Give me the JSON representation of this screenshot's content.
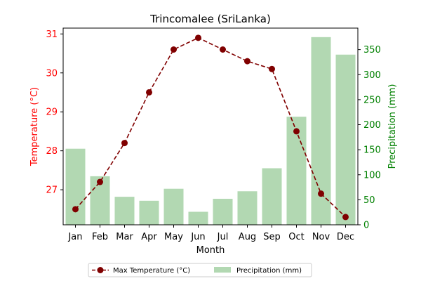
{
  "chart_data": {
    "type": "bar+line",
    "title": "Trincomalee (SriLanka)",
    "xlabel": "Month",
    "categories": [
      "Jan",
      "Feb",
      "Mar",
      "Apr",
      "May",
      "Jun",
      "Jul",
      "Aug",
      "Sep",
      "Oct",
      "Nov",
      "Dec"
    ],
    "series": [
      {
        "name": "Max Temperature (°C)",
        "type": "line",
        "axis": "left",
        "color": "#800000",
        "line_style": "dashed",
        "marker": "circle",
        "values": [
          26.5,
          27.2,
          28.2,
          29.5,
          30.6,
          30.9,
          30.6,
          30.3,
          30.1,
          28.5,
          26.9,
          26.3
        ]
      },
      {
        "name": "Precipitation (mm)",
        "type": "bar",
        "axis": "right",
        "color": "#b2d8b2",
        "values": [
          152,
          97,
          56,
          48,
          72,
          26,
          52,
          67,
          113,
          216,
          375,
          340
        ]
      }
    ],
    "y_left": {
      "label": "Temperature (°C)",
      "color": "#ff0000",
      "range": [
        26.1,
        31.15
      ],
      "ticks": [
        27,
        28,
        29,
        30,
        31
      ]
    },
    "y_right": {
      "label": "Precipitation (mm)",
      "color": "#008000",
      "range": [
        0,
        393
      ],
      "ticks": [
        0,
        50,
        100,
        150,
        200,
        250,
        300,
        350
      ]
    },
    "grid": false,
    "legend": "bottom-center"
  }
}
